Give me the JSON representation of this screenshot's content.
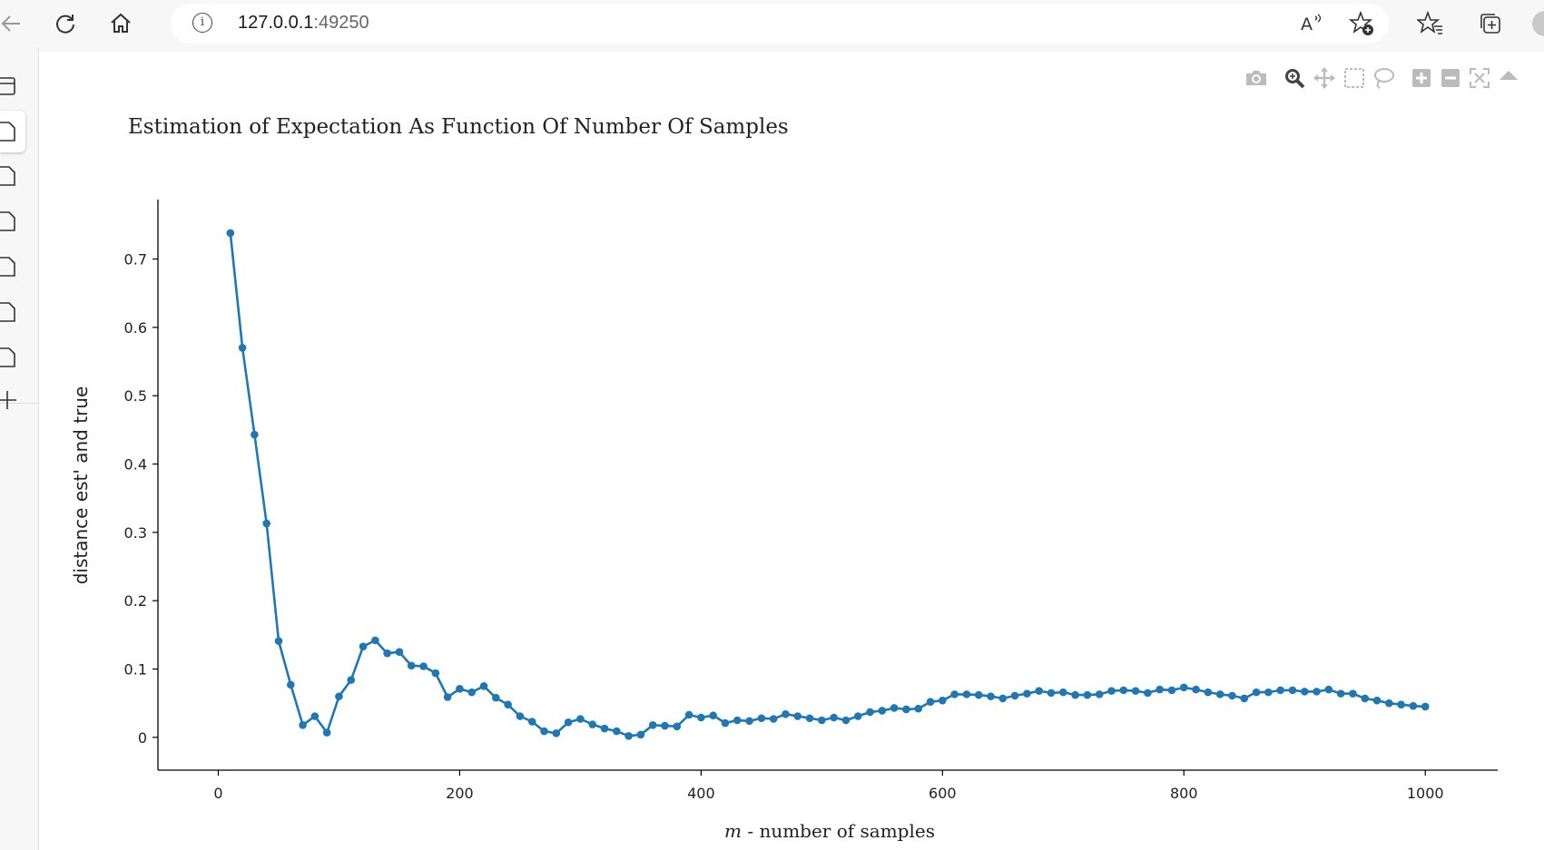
{
  "browser": {
    "url_host": "127.0.0.1",
    "url_port": ":49250"
  },
  "icons": [
    "back-arrow-icon",
    "refresh-icon",
    "home-icon",
    "info-icon",
    "read-aloud-icon",
    "add-favorite-icon",
    "favorites-icon",
    "collections-icon",
    "profile-icon",
    "camera-icon",
    "zoom-icon",
    "pan-icon",
    "box-select-icon",
    "lasso-icon",
    "zoom-in-icon",
    "zoom-out-icon",
    "autoscale-icon",
    "reset-axes-icon"
  ],
  "colors": {
    "series": "#1f77b4",
    "axis": "#000000"
  },
  "chart_data": {
    "type": "line",
    "mode": "lines+markers",
    "title": "Estimation of Expectation As Function Of Number Of Samples",
    "xlabel_italic": "m",
    "xlabel_rest": " - number of samples",
    "ylabel": "distance est' and true",
    "xlim": [
      -50,
      1060
    ],
    "ylim": [
      -0.048,
      0.787
    ],
    "xticks": [
      0,
      200,
      400,
      600,
      800,
      1000
    ],
    "xtick_labels": [
      "0",
      "200",
      "400",
      "600",
      "800",
      "1000"
    ],
    "yticks": [
      0,
      0.1,
      0.2,
      0.3,
      0.4,
      0.5,
      0.6,
      0.7
    ],
    "ytick_labels": [
      "0",
      "0.1",
      "0.2",
      "0.3",
      "0.4",
      "0.5",
      "0.6",
      "0.7"
    ],
    "grid": false,
    "x": [
      10,
      20,
      30,
      40,
      50,
      60,
      70,
      80,
      90,
      100,
      110,
      120,
      130,
      140,
      150,
      160,
      170,
      180,
      190,
      200,
      210,
      220,
      230,
      240,
      250,
      260,
      270,
      280,
      290,
      300,
      310,
      320,
      330,
      340,
      350,
      360,
      370,
      380,
      390,
      400,
      410,
      420,
      430,
      440,
      450,
      460,
      470,
      480,
      490,
      500,
      510,
      520,
      530,
      540,
      550,
      560,
      570,
      580,
      590,
      600,
      610,
      620,
      630,
      640,
      650,
      660,
      670,
      680,
      690,
      700,
      710,
      720,
      730,
      740,
      750,
      760,
      770,
      780,
      790,
      800,
      810,
      820,
      830,
      840,
      850,
      860,
      870,
      880,
      890,
      900,
      910,
      920,
      930,
      940,
      950,
      960,
      970,
      980,
      990,
      1000
    ],
    "y": [
      0.738,
      0.57,
      0.443,
      0.313,
      0.141,
      0.077,
      0.018,
      0.031,
      0.007,
      0.06,
      0.084,
      0.133,
      0.142,
      0.123,
      0.125,
      0.105,
      0.104,
      0.094,
      0.059,
      0.071,
      0.066,
      0.075,
      0.058,
      0.048,
      0.031,
      0.023,
      0.009,
      0.006,
      0.022,
      0.027,
      0.019,
      0.013,
      0.009,
      0.002,
      0.004,
      0.018,
      0.017,
      0.016,
      0.033,
      0.029,
      0.032,
      0.021,
      0.025,
      0.024,
      0.028,
      0.027,
      0.034,
      0.031,
      0.028,
      0.025,
      0.029,
      0.025,
      0.031,
      0.037,
      0.039,
      0.043,
      0.041,
      0.042,
      0.052,
      0.054,
      0.063,
      0.063,
      0.062,
      0.06,
      0.057,
      0.061,
      0.064,
      0.068,
      0.065,
      0.066,
      0.062,
      0.062,
      0.063,
      0.068,
      0.069,
      0.068,
      0.065,
      0.07,
      0.069,
      0.073,
      0.07,
      0.066,
      0.063,
      0.061,
      0.057,
      0.066,
      0.066,
      0.069,
      0.069,
      0.067,
      0.067,
      0.07,
      0.064,
      0.064,
      0.057,
      0.054,
      0.05,
      0.048,
      0.046,
      0.045
    ]
  }
}
